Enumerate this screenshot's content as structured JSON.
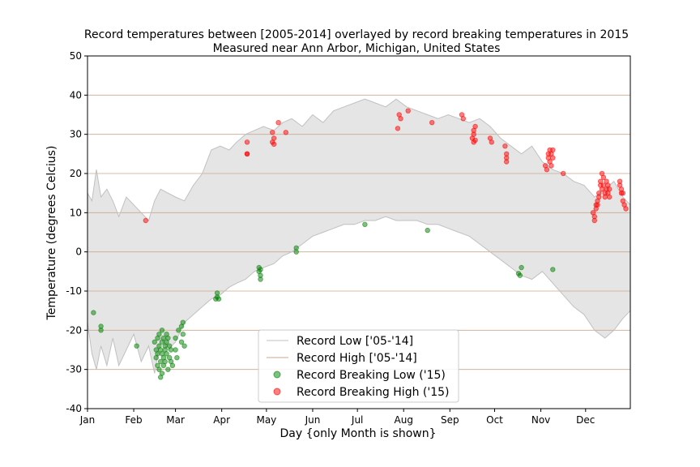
{
  "chart_data": {
    "type": "line",
    "title": "Record temperatures between [2005-2014] overlayed by record breaking temperatures in 2015",
    "subtitle": "Measured near Ann Arbor, Michigan, United States",
    "xlabel": "Day {only Month is shown}",
    "ylabel": "Temperature (degrees Celcius)",
    "xlim": [
      1,
      365
    ],
    "ylim": [
      -40,
      50
    ],
    "yticks": [
      -40,
      -30,
      -20,
      -10,
      0,
      10,
      20,
      30,
      40,
      50
    ],
    "xticks": [
      {
        "day": 1,
        "label": "Jan"
      },
      {
        "day": 32,
        "label": "Feb"
      },
      {
        "day": 60,
        "label": "Mar"
      },
      {
        "day": 91,
        "label": "Apr"
      },
      {
        "day": 121,
        "label": "May"
      },
      {
        "day": 152,
        "label": "Jun"
      },
      {
        "day": 182,
        "label": "Jul"
      },
      {
        "day": 213,
        "label": "Aug"
      },
      {
        "day": 244,
        "label": "Sep"
      },
      {
        "day": 274,
        "label": "Oct"
      },
      {
        "day": 305,
        "label": "Nov"
      },
      {
        "day": 335,
        "label": "Dec"
      }
    ],
    "grid": "horizontal",
    "legend": {
      "placement": "lower-center"
    },
    "colors": {
      "low_high_line": "#c0c0c0",
      "band_fill": "#e5e5e5",
      "grid": "#c8a98f",
      "record_low": "#008000",
      "record_high": "#ff0000"
    },
    "series": [
      {
        "name": "Record Low ['05-'14]",
        "kind": "line",
        "x": [
          1,
          4,
          7,
          10,
          14,
          18,
          22,
          27,
          32,
          37,
          42,
          46,
          50,
          55,
          60,
          66,
          72,
          78,
          84,
          90,
          96,
          101,
          107,
          113,
          119,
          126,
          132,
          138,
          145,
          152,
          159,
          166,
          173,
          180,
          187,
          194,
          201,
          208,
          215,
          222,
          229,
          236,
          243,
          250,
          257,
          264,
          271,
          278,
          285,
          292,
          299,
          306,
          313,
          320,
          327,
          334,
          341,
          348,
          354,
          360,
          365
        ],
        "y": [
          -18,
          -26,
          -30,
          -24,
          -29,
          -22,
          -29,
          -25,
          -21,
          -28,
          -24,
          -31,
          -22,
          -25,
          -23,
          -18,
          -16,
          -14,
          -12,
          -11,
          -9,
          -8,
          -7,
          -5,
          -4,
          -3,
          -1,
          0,
          2,
          4,
          5,
          6,
          7,
          7,
          8,
          8,
          9,
          8,
          8,
          8,
          7,
          7,
          6,
          5,
          4,
          2,
          0,
          -2,
          -4,
          -6,
          -7,
          -5,
          -8,
          -11,
          -14,
          -16,
          -20,
          -22,
          -20,
          -17,
          -15
        ]
      },
      {
        "name": "Record High ['05-'14]",
        "kind": "line",
        "x": [
          1,
          4,
          7,
          10,
          14,
          18,
          22,
          27,
          32,
          37,
          42,
          46,
          50,
          55,
          60,
          66,
          72,
          78,
          84,
          90,
          96,
          101,
          107,
          113,
          119,
          126,
          132,
          138,
          145,
          152,
          159,
          166,
          173,
          180,
          187,
          194,
          201,
          208,
          215,
          222,
          229,
          236,
          243,
          250,
          257,
          264,
          271,
          278,
          285,
          292,
          299,
          306,
          313,
          320,
          327,
          334,
          341,
          348,
          354,
          360,
          365
        ],
        "y": [
          15,
          13,
          21,
          14,
          16,
          13,
          9,
          14,
          12,
          10,
          8,
          13,
          16,
          15,
          14,
          13,
          17,
          20,
          26,
          27,
          26,
          28,
          30,
          31,
          32,
          31,
          33,
          34,
          32,
          35,
          33,
          36,
          37,
          38,
          39,
          38,
          37,
          39,
          37,
          36,
          35,
          34,
          35,
          34,
          33,
          34,
          32,
          29,
          27,
          25,
          27,
          23,
          21,
          20,
          18,
          17,
          14,
          16,
          18,
          14,
          12
        ]
      },
      {
        "name": "Record Breaking Low ('15)",
        "kind": "scatter",
        "x": [
          5,
          10,
          10,
          34,
          46,
          47,
          47,
          48,
          48,
          48,
          49,
          49,
          49,
          50,
          50,
          50,
          51,
          51,
          51,
          51,
          52,
          52,
          52,
          53,
          53,
          53,
          54,
          54,
          54,
          55,
          55,
          56,
          56,
          57,
          57,
          58,
          60,
          60,
          61,
          62,
          64,
          64,
          65,
          65,
          66,
          87,
          88,
          88,
          89,
          116,
          116,
          117,
          117,
          117,
          141,
          141,
          187,
          229,
          290,
          291,
          292,
          313
        ],
        "y": [
          -15.5,
          -19,
          -20,
          -24,
          -23,
          -25,
          -27,
          -29,
          -22,
          -26,
          -24,
          -30,
          -21,
          -25,
          -28,
          -32,
          -20,
          -23,
          -26,
          -31,
          -22,
          -27,
          -29,
          -24,
          -25,
          -28,
          -21,
          -23,
          -26,
          -30,
          -22,
          -24,
          -27,
          -25,
          -28,
          -29,
          -25,
          -22,
          -27,
          -20,
          -23,
          -19,
          -18,
          -21,
          -24,
          -12,
          -10.5,
          -11.5,
          -12,
          -4,
          -5,
          -6,
          -7,
          -4.5,
          1,
          0,
          7,
          5.5,
          -5.5,
          -6,
          -4,
          -4.5
        ]
      },
      {
        "name": "Record Breaking High ('15)",
        "kind": "scatter",
        "x": [
          40,
          108,
          108,
          108,
          125,
          125,
          126,
          126,
          129,
          134,
          209,
          210,
          211,
          216,
          232,
          252,
          253,
          259,
          260,
          260,
          260,
          261,
          261,
          271,
          272,
          281,
          282,
          282,
          282,
          308,
          309,
          310,
          310,
          311,
          311,
          312,
          312,
          313,
          313,
          320,
          340,
          341,
          341,
          342,
          342,
          343,
          343,
          344,
          344,
          345,
          345,
          346,
          346,
          347,
          347,
          348,
          348,
          349,
          349,
          350,
          350,
          351,
          351,
          358,
          358,
          359,
          359,
          360,
          360,
          361,
          362
        ],
        "y": [
          8,
          28,
          25,
          25,
          30.5,
          28,
          27.5,
          29,
          33,
          30.5,
          31.5,
          35,
          34,
          36,
          33,
          35,
          34,
          29,
          28,
          31,
          30,
          32,
          28.5,
          29,
          28,
          27,
          24,
          25,
          23,
          22,
          21,
          25,
          24,
          26,
          23,
          25,
          22,
          26,
          24,
          20,
          10,
          9,
          8,
          11,
          12,
          13,
          12,
          15,
          14,
          17,
          18,
          20,
          16,
          17,
          19,
          15,
          14,
          16,
          18,
          17,
          15,
          16,
          14,
          17,
          18,
          16,
          15,
          13,
          15,
          12,
          11
        ]
      }
    ]
  }
}
